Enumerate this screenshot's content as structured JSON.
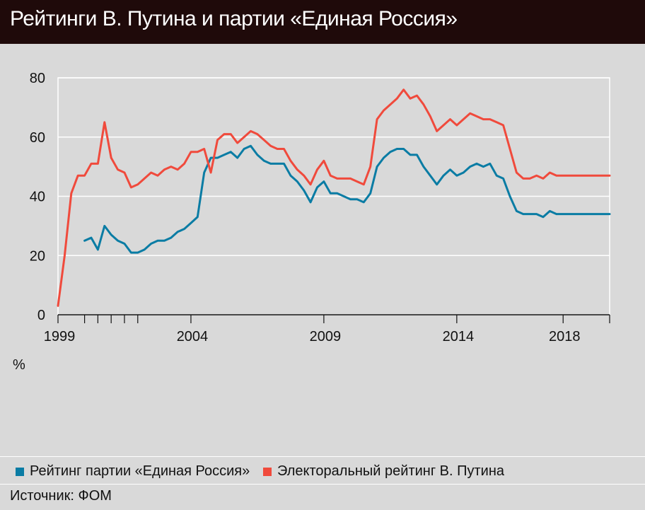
{
  "header": {
    "title": "Рейтинги В. Путина и партии «Единая Россия»"
  },
  "source": "Источник: ФОМ",
  "chart_data": {
    "type": "line",
    "title": "Рейтинги В. Путина и партии «Единая Россия»",
    "ylabel": "%",
    "ylim": [
      0,
      80
    ],
    "y_ticks": [
      0,
      20,
      40,
      60,
      80
    ],
    "xlim": [
      1999,
      2019.75
    ],
    "x_tick_labels": [
      {
        "value": 1999,
        "label": "1999"
      },
      {
        "value": 2004,
        "label": "2004"
      },
      {
        "value": 2009,
        "label": "2009"
      },
      {
        "value": 2014,
        "label": "2014"
      },
      {
        "value": 2018,
        "label": "2018"
      }
    ],
    "x_minor_ticks": [
      1999,
      2000,
      2000.5,
      2001,
      2001.5,
      2002,
      2004,
      2009,
      2014,
      2018,
      2019.75
    ],
    "grid": true,
    "legend_position": "bottom",
    "series": [
      {
        "name": "Рейтинг партии «Единая Россия»",
        "color": "#0a7ca4",
        "x": [
          2000.0,
          2000.25,
          2000.5,
          2000.75,
          2001.0,
          2001.25,
          2001.5,
          2001.75,
          2002.0,
          2002.25,
          2002.5,
          2002.75,
          2003.0,
          2003.25,
          2003.5,
          2003.75,
          2004.0,
          2004.25,
          2004.5,
          2004.75,
          2005.0,
          2005.25,
          2005.5,
          2005.75,
          2006.0,
          2006.25,
          2006.5,
          2006.75,
          2007.0,
          2007.25,
          2007.5,
          2007.75,
          2008.0,
          2008.25,
          2008.5,
          2008.75,
          2009.0,
          2009.25,
          2009.5,
          2009.75,
          2010.0,
          2010.25,
          2010.5,
          2010.75,
          2011.0,
          2011.25,
          2011.5,
          2011.75,
          2012.0,
          2012.25,
          2012.5,
          2012.75,
          2013.0,
          2013.25,
          2013.5,
          2013.75,
          2014.0,
          2014.25,
          2014.5,
          2014.75,
          2015.0,
          2015.25,
          2015.5,
          2015.75,
          2016.0,
          2016.25,
          2016.5,
          2016.75,
          2017.0,
          2017.25,
          2017.5,
          2017.75,
          2018.0,
          2018.25,
          2018.5,
          2018.75,
          2019.0,
          2019.25,
          2019.5,
          2019.75
        ],
        "values": [
          25,
          26,
          22,
          30,
          27,
          25,
          24,
          21,
          21,
          22,
          24,
          25,
          25,
          26,
          28,
          29,
          31,
          33,
          48,
          53,
          53,
          54,
          55,
          53,
          56,
          57,
          54,
          52,
          51,
          51,
          51,
          47,
          45,
          42,
          38,
          43,
          45,
          41,
          41,
          40,
          39,
          39,
          38,
          41,
          50,
          53,
          55,
          56,
          56,
          54,
          54,
          50,
          47,
          44,
          47,
          49,
          47,
          48,
          50,
          51,
          50,
          51,
          47,
          46,
          40,
          35,
          34,
          34,
          34,
          33,
          35,
          34,
          34,
          34,
          34,
          34,
          34,
          34,
          34,
          34
        ]
      },
      {
        "name": "Электоральный рейтинг В. Путина",
        "color": "#f04a3c",
        "x": [
          1999.0,
          1999.25,
          1999.5,
          1999.75,
          2000.0,
          2000.25,
          2000.5,
          2000.75,
          2001.0,
          2001.25,
          2001.5,
          2001.75,
          2002.0,
          2002.25,
          2002.5,
          2002.75,
          2003.0,
          2003.25,
          2003.5,
          2003.75,
          2004.0,
          2004.25,
          2004.5,
          2004.75,
          2005.0,
          2005.25,
          2005.5,
          2005.75,
          2006.0,
          2006.25,
          2006.5,
          2006.75,
          2007.0,
          2007.25,
          2007.5,
          2007.75,
          2008.0,
          2008.25,
          2008.5,
          2008.75,
          2009.0,
          2009.25,
          2009.5,
          2009.75,
          2010.0,
          2010.25,
          2010.5,
          2010.75,
          2011.0,
          2011.25,
          2011.5,
          2011.75,
          2012.0,
          2012.25,
          2012.5,
          2012.75,
          2013.0,
          2013.25,
          2013.5,
          2013.75,
          2014.0,
          2014.25,
          2014.5,
          2014.75,
          2015.0,
          2015.25,
          2015.5,
          2015.75,
          2016.0,
          2016.25,
          2016.5,
          2016.75,
          2017.0,
          2017.25,
          2017.5,
          2017.75,
          2018.0,
          2018.25,
          2018.5,
          2018.75,
          2019.0,
          2019.25,
          2019.5,
          2019.75
        ],
        "values": [
          3,
          20,
          41,
          47,
          47,
          51,
          51,
          65,
          53,
          49,
          48,
          43,
          44,
          46,
          48,
          47,
          49,
          50,
          49,
          51,
          55,
          55,
          56,
          48,
          59,
          61,
          61,
          58,
          60,
          62,
          61,
          59,
          57,
          56,
          56,
          52,
          49,
          47,
          44,
          49,
          52,
          47,
          46,
          46,
          46,
          45,
          44,
          50,
          66,
          69,
          71,
          73,
          76,
          73,
          74,
          71,
          67,
          62,
          64,
          66,
          64,
          66,
          68,
          67,
          66,
          66,
          65,
          64,
          56,
          48,
          46,
          46,
          47,
          46,
          48,
          47,
          47,
          47,
          47,
          47,
          47,
          47,
          47,
          47
        ]
      }
    ]
  }
}
